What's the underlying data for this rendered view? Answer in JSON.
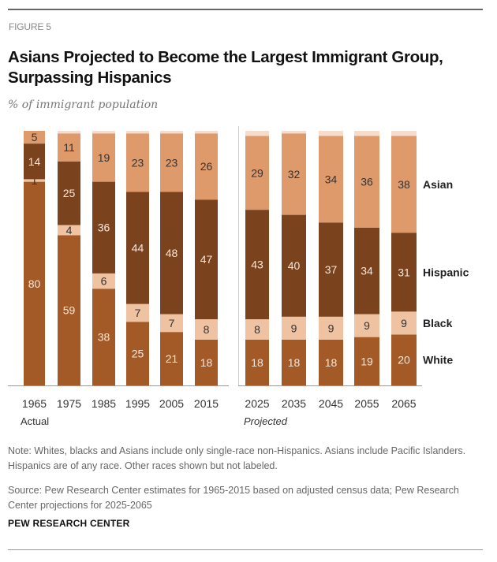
{
  "header": {
    "figure_label": "FIGURE 5",
    "title": "Asians Projected to Become the Largest Immigrant Group, Surpassing Hispanics",
    "subtitle": "% of immigrant population"
  },
  "chart_data": {
    "type": "bar",
    "stacked": true,
    "ylim": [
      0,
      100
    ],
    "grid": false,
    "legend": "right (series labels beside last bar)",
    "colors": {
      "White": "#a35a27",
      "Black": "#efc2a2",
      "Hispanic": "#7a421d",
      "Asian": "#df9a6c",
      "Other": "#f4ddcc"
    },
    "groups": [
      {
        "label": "Actual",
        "categories": [
          "1965",
          "1975",
          "1985",
          "1995",
          "2005",
          "2015"
        ]
      },
      {
        "label": "Projected",
        "categories": [
          "2025",
          "2035",
          "2045",
          "2055",
          "2065"
        ]
      }
    ],
    "categories": [
      "1965",
      "1975",
      "1985",
      "1995",
      "2005",
      "2015",
      "2025",
      "2035",
      "2045",
      "2055",
      "2065"
    ],
    "series": [
      {
        "name": "White",
        "values": [
          80,
          59,
          38,
          25,
          21,
          18,
          18,
          18,
          18,
          19,
          20
        ]
      },
      {
        "name": "Black",
        "values": [
          1,
          4,
          6,
          7,
          7,
          8,
          8,
          9,
          9,
          9,
          9
        ]
      },
      {
        "name": "Hispanic",
        "values": [
          14,
          25,
          36,
          44,
          48,
          47,
          43,
          40,
          37,
          34,
          31
        ]
      },
      {
        "name": "Asian",
        "values": [
          5,
          11,
          19,
          23,
          23,
          26,
          29,
          32,
          34,
          36,
          38
        ]
      }
    ]
  },
  "footer": {
    "note": "Note: Whites, blacks and Asians include only single-race non-Hispanics. Asians include Pacific Islanders. Hispanics are of any race. Other races shown but not labeled.",
    "source": "Source: Pew Research Center estimates for 1965-2015 based on adjusted census data; Pew Research Center projections for 2025-2065",
    "brand": "PEW RESEARCH CENTER"
  }
}
